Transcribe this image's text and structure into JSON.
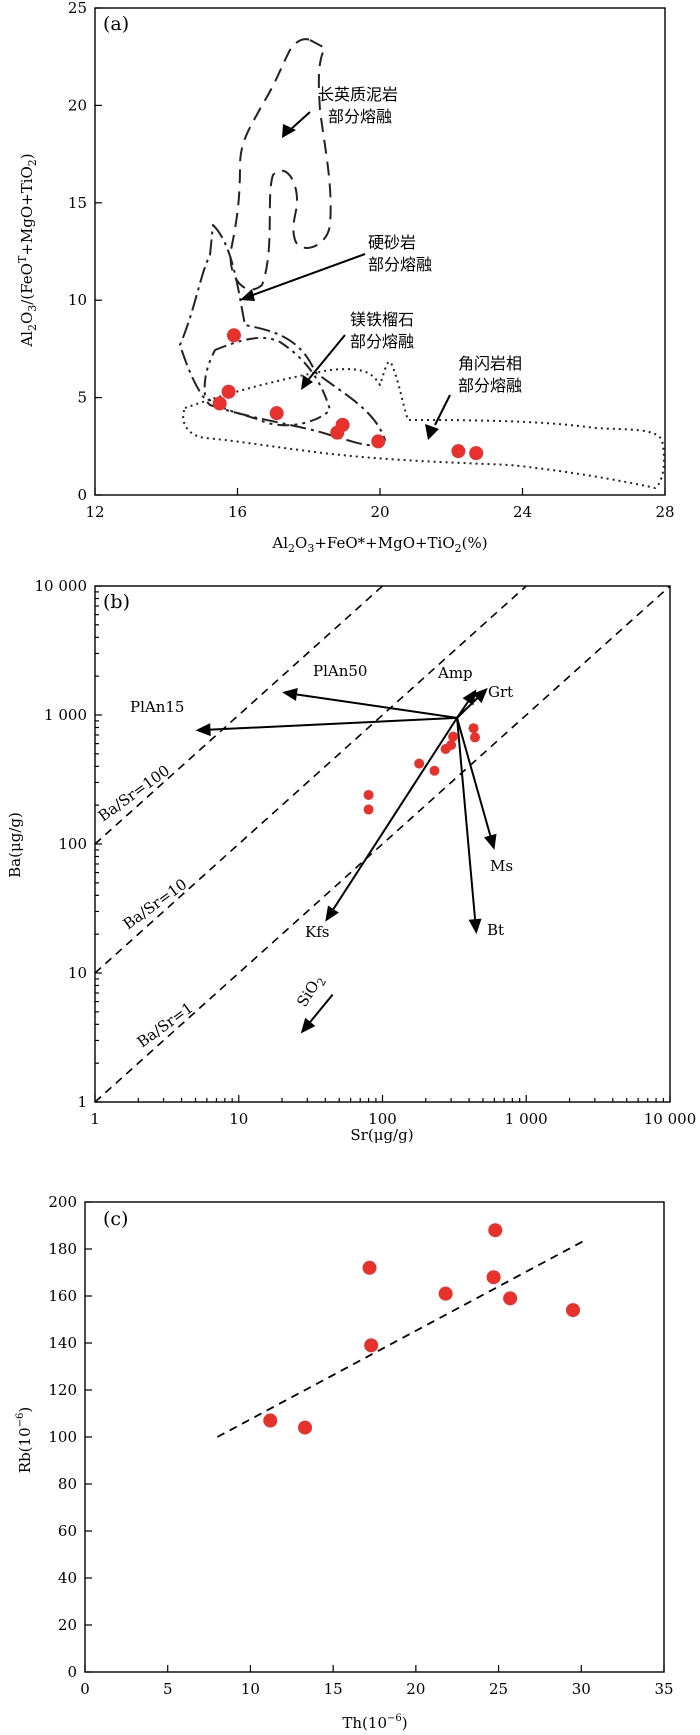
{
  "chart_data": [
    {
      "type": "scatter",
      "panel_label": "(a)",
      "xlabel": "Al2O3+FeO*+MgO+TiO2(%)",
      "ylabel": "Al2O3/(FeOT+MgO+TiO2)",
      "xlim": [
        12,
        28
      ],
      "ylim": [
        0,
        25
      ],
      "x_ticks": [
        "12",
        "16",
        "20",
        "24",
        "28"
      ],
      "y_ticks": [
        "0",
        "5",
        "10",
        "15",
        "20",
        "25"
      ],
      "points": [
        {
          "x": 15.9,
          "y": 8.2
        },
        {
          "x": 15.75,
          "y": 5.3
        },
        {
          "x": 15.5,
          "y": 4.7
        },
        {
          "x": 17.1,
          "y": 4.2
        },
        {
          "x": 18.95,
          "y": 3.6
        },
        {
          "x": 18.8,
          "y": 3.2
        },
        {
          "x": 19.95,
          "y": 2.75
        },
        {
          "x": 22.2,
          "y": 2.25
        },
        {
          "x": 22.7,
          "y": 2.15
        }
      ],
      "regions": [
        {
          "name": "长英质泥岩 部分熔融",
          "label_lines": [
            "长英质泥岩",
            "部分熔融"
          ]
        },
        {
          "name": "硬砂岩 部分熔融",
          "label_lines": [
            "硬砂岩",
            "部分熔融"
          ]
        },
        {
          "name": "镁铁榴石 部分熔融",
          "label_lines": [
            "镁铁榴石",
            "部分熔融"
          ]
        },
        {
          "name": "角闪岩相 部分熔融",
          "label_lines": [
            "角闪岩相",
            "部分熔融"
          ]
        }
      ]
    },
    {
      "type": "scatter",
      "panel_label": "(b)",
      "xlabel": "Sr(μg/g)",
      "ylabel": "Ba(μg/g)",
      "xscale": "log",
      "yscale": "log",
      "xlim": [
        1,
        10000
      ],
      "ylim": [
        1,
        10000
      ],
      "x_ticks": [
        "1",
        "10",
        "100",
        "1 000",
        "10 000"
      ],
      "y_ticks": [
        "1",
        "10",
        "100",
        "1 000",
        "10 000"
      ],
      "points": [
        {
          "x": 80,
          "y": 240
        },
        {
          "x": 80,
          "y": 185
        },
        {
          "x": 180,
          "y": 420
        },
        {
          "x": 230,
          "y": 370
        },
        {
          "x": 275,
          "y": 545
        },
        {
          "x": 300,
          "y": 585
        },
        {
          "x": 310,
          "y": 680
        },
        {
          "x": 430,
          "y": 790
        },
        {
          "x": 440,
          "y": 670
        }
      ],
      "reference_lines": [
        {
          "label": "Ba/Sr=100",
          "ratio": 100
        },
        {
          "label": "Ba/Sr=10",
          "ratio": 10
        },
        {
          "label": "Ba/Sr=1",
          "ratio": 1
        }
      ],
      "vectors": [
        {
          "label": "PlAn15",
          "from": [
            330,
            950
          ],
          "to": [
            5,
            760
          ]
        },
        {
          "label": "PlAn50",
          "from": [
            330,
            950
          ],
          "to": [
            20,
            1500
          ]
        },
        {
          "label": "Amp",
          "from": [
            330,
            950
          ],
          "to": [
            450,
            1580
          ]
        },
        {
          "label": "Grt",
          "from": [
            330,
            950
          ],
          "to": [
            540,
            1620
          ]
        },
        {
          "label": "Ms",
          "from": [
            330,
            950
          ],
          "to": [
            600,
            90
          ]
        },
        {
          "label": "Bt",
          "from": [
            330,
            950
          ],
          "to": [
            450,
            20
          ]
        },
        {
          "label": "Kfs",
          "from": [
            330,
            950
          ],
          "to": [
            40,
            25
          ]
        },
        {
          "label": "SiO2",
          "from": [
            45,
            6.8
          ],
          "to": [
            27,
            3.4
          ]
        }
      ]
    },
    {
      "type": "scatter",
      "panel_label": "(c)",
      "xlabel": "Th(10-6)",
      "ylabel": "Rb(10-6)",
      "xlim": [
        0,
        35
      ],
      "ylim": [
        0,
        200
      ],
      "x_ticks": [
        "0",
        "5",
        "10",
        "15",
        "20",
        "25",
        "30",
        "35"
      ],
      "y_ticks": [
        "0",
        "20",
        "40",
        "60",
        "80",
        "100",
        "120",
        "140",
        "160",
        "180",
        "200"
      ],
      "points": [
        {
          "x": 11.2,
          "y": 107
        },
        {
          "x": 13.3,
          "y": 104
        },
        {
          "x": 17.2,
          "y": 172
        },
        {
          "x": 17.3,
          "y": 139
        },
        {
          "x": 21.8,
          "y": 161
        },
        {
          "x": 24.8,
          "y": 188
        },
        {
          "x": 24.7,
          "y": 168
        },
        {
          "x": 25.7,
          "y": 159
        },
        {
          "x": 29.5,
          "y": 154
        }
      ],
      "trend_line": [
        {
          "x": 8,
          "y": 100
        },
        {
          "x": 30.3,
          "y": 184
        }
      ]
    }
  ]
}
